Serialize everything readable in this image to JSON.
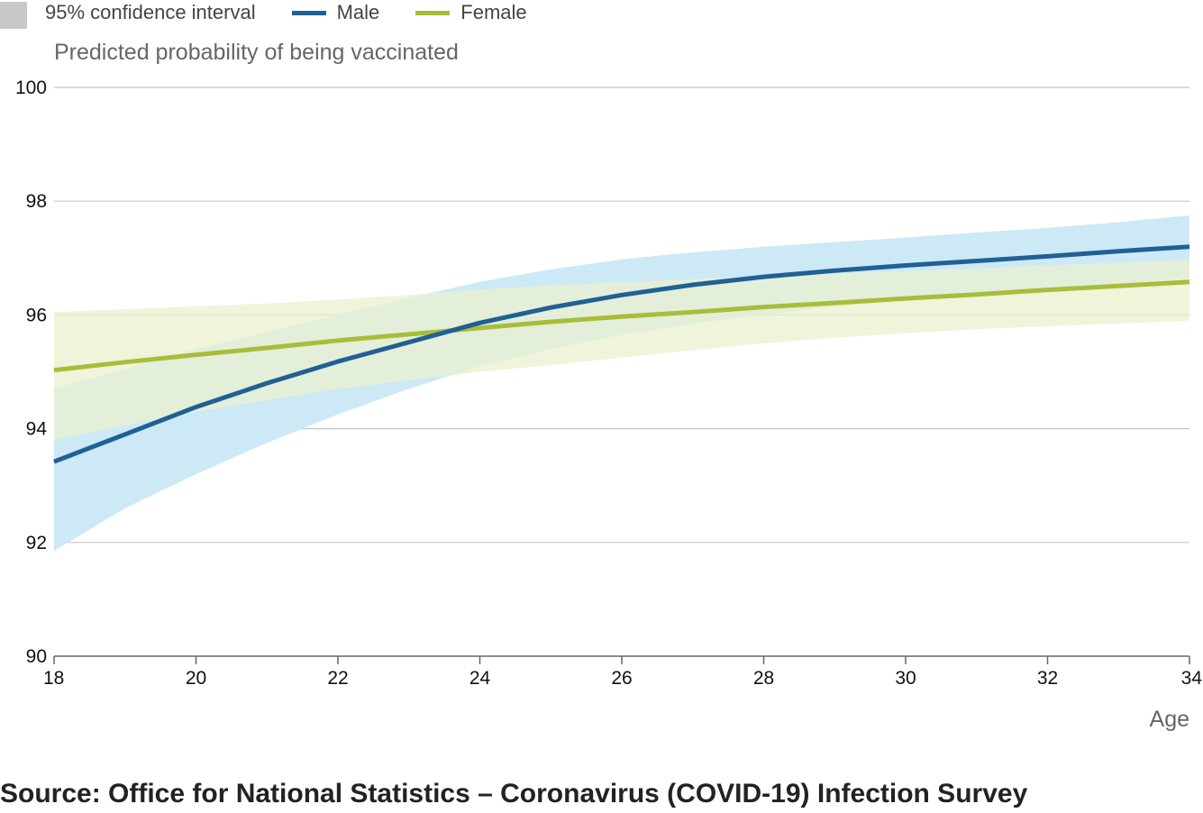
{
  "legend": {
    "ci_label": "95% confidence interval",
    "male_label": "Male",
    "female_label": "Female"
  },
  "source": "Source: Office for National Statistics – Coronavirus (COVID-19) Infection Survey",
  "colors": {
    "male": "#206095",
    "female": "#a8bd3a",
    "male_ci": "#cde9f6",
    "female_ci": "#eaf0cf",
    "overlap_ci": "#c9e4da",
    "grid": "#c6c6c6",
    "legend_box": "#c8c8c8"
  },
  "chart_data": {
    "type": "line",
    "title": "",
    "ylabel": "Predicted probability of being vaccinated",
    "xlabel": "Age",
    "xlim": [
      18,
      34
    ],
    "ylim": [
      90,
      100
    ],
    "x_ticks": [
      18,
      20,
      22,
      24,
      26,
      28,
      30,
      32,
      34
    ],
    "y_ticks": [
      90,
      92,
      94,
      96,
      98,
      100
    ],
    "grid": "horizontal",
    "legend_position": "top-left",
    "x": [
      18,
      19,
      20,
      21,
      22,
      23,
      24,
      25,
      26,
      27,
      28,
      29,
      30,
      31,
      32,
      33,
      34
    ],
    "series": [
      {
        "name": "Male",
        "values": [
          93.42,
          93.9,
          94.38,
          94.8,
          95.18,
          95.52,
          95.86,
          96.13,
          96.35,
          96.53,
          96.67,
          96.78,
          96.87,
          96.95,
          97.03,
          97.12,
          97.2
        ],
        "ci_lower": [
          91.85,
          92.6,
          93.2,
          93.75,
          94.25,
          94.7,
          95.1,
          95.4,
          95.65,
          95.85,
          96.0,
          96.15,
          96.25,
          96.35,
          96.45,
          96.55,
          96.65
        ],
        "ci_upper": [
          94.7,
          95.05,
          95.4,
          95.7,
          96.0,
          96.3,
          96.58,
          96.8,
          96.98,
          97.1,
          97.2,
          97.28,
          97.36,
          97.45,
          97.53,
          97.63,
          97.75
        ]
      },
      {
        "name": "Female",
        "values": [
          95.03,
          95.17,
          95.3,
          95.42,
          95.55,
          95.66,
          95.77,
          95.88,
          95.97,
          96.05,
          96.14,
          96.21,
          96.29,
          96.36,
          96.44,
          96.51,
          96.58
        ],
        "ci_lower": [
          93.8,
          94.05,
          94.3,
          94.5,
          94.7,
          94.85,
          95.0,
          95.12,
          95.25,
          95.38,
          95.5,
          95.6,
          95.68,
          95.75,
          95.8,
          95.85,
          95.9
        ],
        "ci_upper": [
          96.05,
          96.1,
          96.15,
          96.2,
          96.27,
          96.35,
          96.45,
          96.52,
          96.58,
          96.63,
          96.68,
          96.73,
          96.77,
          96.82,
          96.87,
          96.92,
          96.97
        ]
      }
    ]
  }
}
